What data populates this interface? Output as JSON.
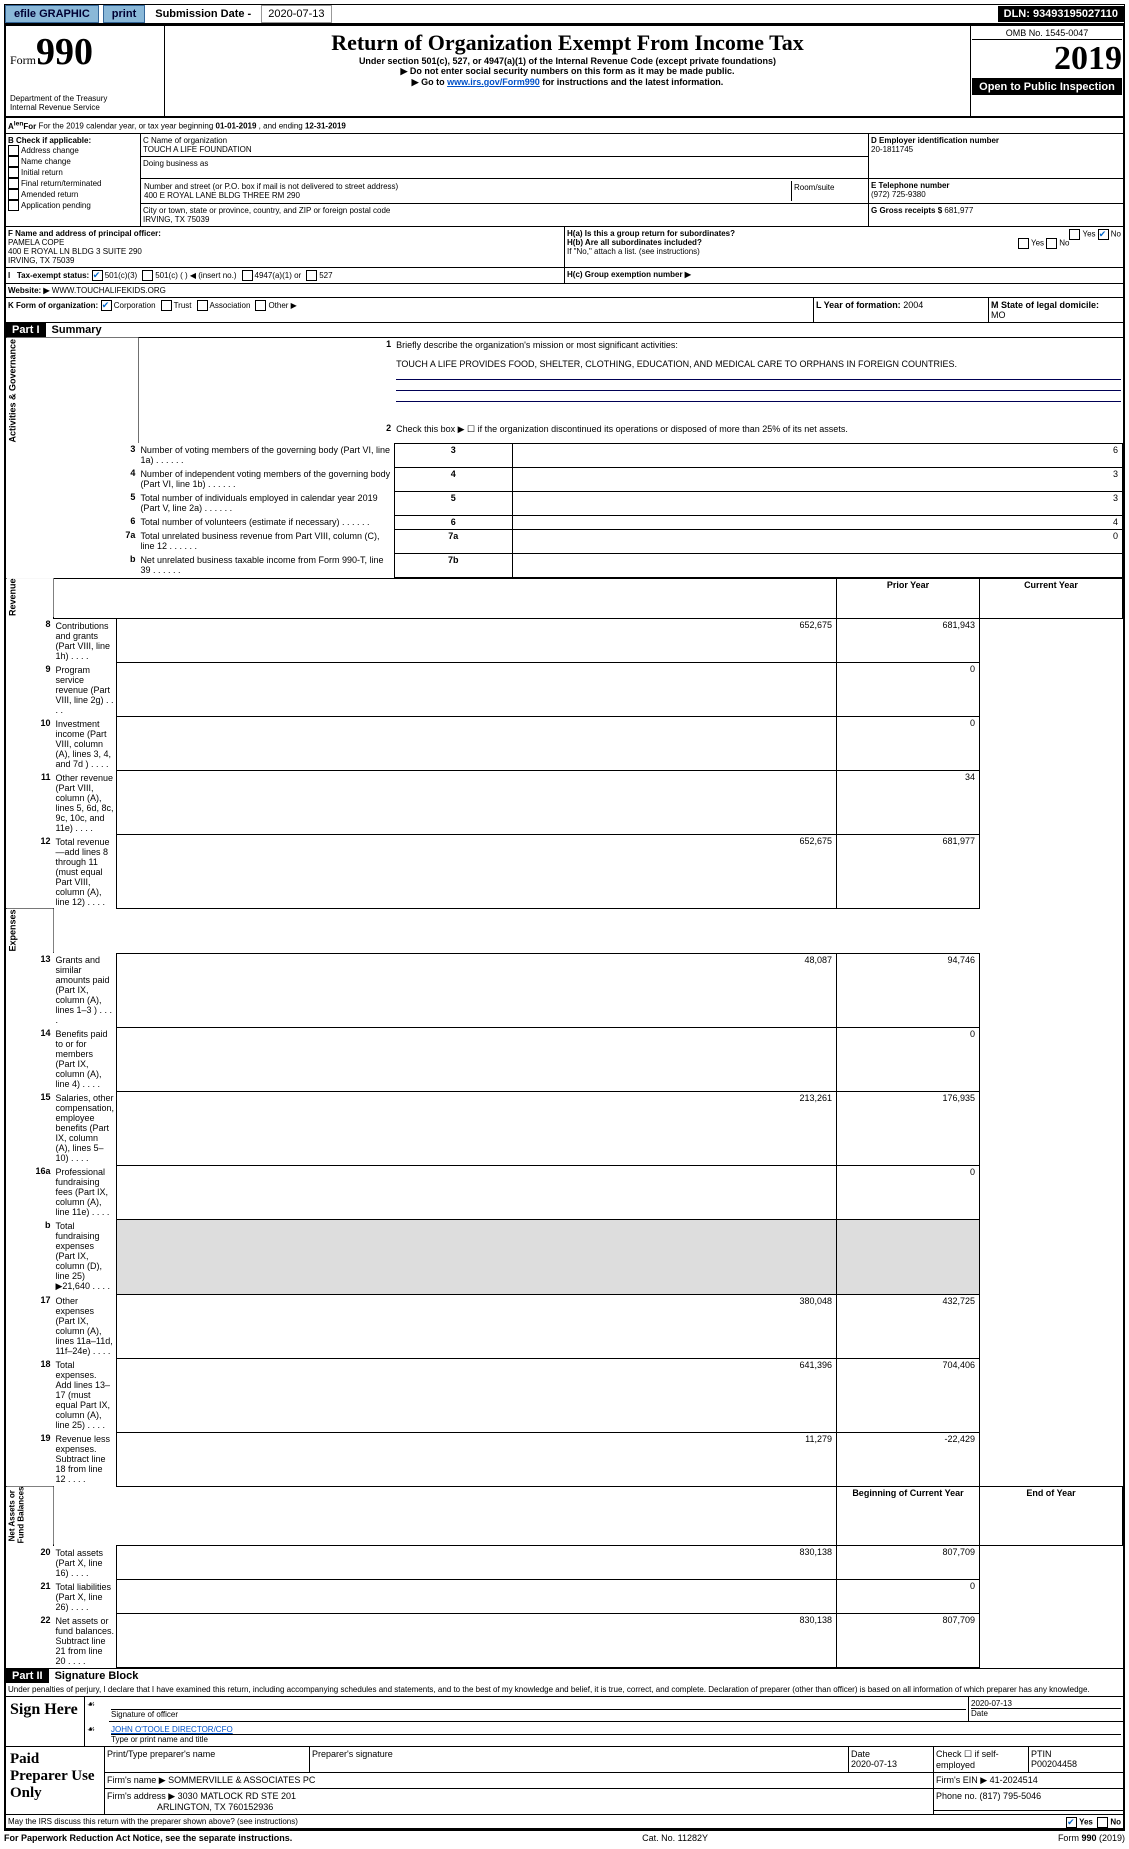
{
  "topbar": {
    "efile": "efile GRAPHIC",
    "print": "print",
    "subLabel": "Submission Date - ",
    "subDate": "2020-07-13",
    "dln": "DLN: 93493195027110"
  },
  "header": {
    "formWord": "Form",
    "formNum": "990",
    "dept": "Department of the Treasury\nInternal Revenue Service",
    "title": "Return of Organization Exempt From Income Tax",
    "sub": "Under section 501(c), 527, or 4947(a)(1) of the Internal Revenue Code (except private foundations)",
    "note1": "▶ Do not enter social security numbers on this form as it may be made public.",
    "note2a": "▶ Go to ",
    "note2link": "www.irs.gov/Form990",
    "note2b": " for instructions and the latest information.",
    "omb": "OMB No. 1545-0047",
    "year": "2019",
    "open": "Open to Public Inspection"
  },
  "A": {
    "text": "For the 2019 calendar year, or tax year beginning ",
    "beg": "01-01-2019",
    "mid": "  , and ending ",
    "end": "12-31-2019"
  },
  "B": {
    "label": "B Check if applicable:",
    "items": [
      "Address change",
      "Name change",
      "Initial return",
      "Final return/terminated",
      "Amended return",
      "Application pending"
    ]
  },
  "C": {
    "nameLbl": "C Name of organization",
    "name": "TOUCH A LIFE FOUNDATION",
    "dba": "Doing business as",
    "addrLbl": "Number and street (or P.O. box if mail is not delivered to street address)",
    "room": "Room/suite",
    "addr": "400 E ROYAL LANE BLDG THREE RM 290",
    "cityLbl": "City or town, state or province, country, and ZIP or foreign postal code",
    "city": "IRVING, TX  75039"
  },
  "D": {
    "lbl": "D Employer identification number",
    "val": "20-1811745"
  },
  "E": {
    "lbl": "E Telephone number",
    "val": "(972) 725-9380"
  },
  "G": {
    "lbl": "G Gross receipts $ ",
    "val": "681,977"
  },
  "F": {
    "lbl": "F  Name and address of principal officer:",
    "name": "PAMELA COPE",
    "addr": "400 E ROYAL LN BLDG 3 SUITE 290",
    "city": "IRVING, TX  75039"
  },
  "H": {
    "a": "H(a)  Is this a group return for subordinates?",
    "b": "H(b)  Are all subordinates included?",
    "bnote": "If \"No,\" attach a list. (see instructions)",
    "c": "H(c)  Group exemption number ▶"
  },
  "I": {
    "lbl": "Tax-exempt status:",
    "c3": "501(c)(3)",
    "c": "501(c) (   ) ◀ (insert no.)",
    "a1": "4947(a)(1) or",
    "s527": "527"
  },
  "J": {
    "lbl": "Website: ▶",
    "val": "  WWW.TOUCHALIFEKIDS.ORG"
  },
  "K": {
    "lbl": "K Form of organization:",
    "corp": "Corporation",
    "trust": "Trust",
    "assoc": "Association",
    "other": "Other ▶"
  },
  "L": {
    "lbl": "L Year of formation: ",
    "val": "2004"
  },
  "M": {
    "lbl": "M State of legal domicile: ",
    "val": "MO"
  },
  "part1": {
    "bar": "Part I",
    "title": "Summary"
  },
  "gov": {
    "side": "Activities & Governance",
    "l1": "Briefly describe the organization's mission or most significant activities:",
    "mission": "TOUCH A LIFE PROVIDES FOOD, SHELTER, CLOTHING, EDUCATION, AND MEDICAL CARE TO ORPHANS IN FOREIGN COUNTRIES.",
    "l2": "Check this box ▶ ☐  if the organization discontinued its operations or disposed of more than 25% of its net assets.",
    "rows": [
      {
        "n": "3",
        "t": "Number of voting members of the governing body (Part VI, line 1a)",
        "b": "3",
        "v": "6"
      },
      {
        "n": "4",
        "t": "Number of independent voting members of the governing body (Part VI, line 1b)",
        "b": "4",
        "v": "3"
      },
      {
        "n": "5",
        "t": "Total number of individuals employed in calendar year 2019 (Part V, line 2a)",
        "b": "5",
        "v": "3"
      },
      {
        "n": "6",
        "t": "Total number of volunteers (estimate if necessary)",
        "b": "6",
        "v": "4"
      },
      {
        "n": "7a",
        "t": "Total unrelated business revenue from Part VIII, column (C), line 12",
        "b": "7a",
        "v": "0"
      },
      {
        "n": "b",
        "t": "Net unrelated business taxable income from Form 990-T, line 39",
        "b": "7b",
        "v": ""
      }
    ]
  },
  "fin": {
    "hdrPrior": "Prior Year",
    "hdrCurr": "Current Year",
    "rev": {
      "side": "Revenue",
      "rows": [
        {
          "n": "8",
          "t": "Contributions and grants (Part VIII, line 1h)",
          "p": "652,675",
          "c": "681,943"
        },
        {
          "n": "9",
          "t": "Program service revenue (Part VIII, line 2g)",
          "p": "",
          "c": "0"
        },
        {
          "n": "10",
          "t": "Investment income (Part VIII, column (A), lines 3, 4, and 7d )",
          "p": "",
          "c": "0"
        },
        {
          "n": "11",
          "t": "Other revenue (Part VIII, column (A), lines 5, 6d, 8c, 9c, 10c, and 11e)",
          "p": "",
          "c": "34"
        },
        {
          "n": "12",
          "t": "Total revenue—add lines 8 through 11 (must equal Part VIII, column (A), line 12)",
          "p": "652,675",
          "c": "681,977"
        }
      ]
    },
    "exp": {
      "side": "Expenses",
      "rows": [
        {
          "n": "13",
          "t": "Grants and similar amounts paid (Part IX, column (A), lines 1–3 )",
          "p": "48,087",
          "c": "94,746"
        },
        {
          "n": "14",
          "t": "Benefits paid to or for members (Part IX, column (A), line 4)",
          "p": "",
          "c": "0"
        },
        {
          "n": "15",
          "t": "Salaries, other compensation, employee benefits (Part IX, column (A), lines 5–10)",
          "p": "213,261",
          "c": "176,935"
        },
        {
          "n": "16a",
          "t": "Professional fundraising fees (Part IX, column (A), line 11e)",
          "p": "",
          "c": "0"
        },
        {
          "n": "b",
          "t": "Total fundraising expenses (Part IX, column (D), line 25) ▶21,640",
          "p": "__gray__",
          "c": "__gray__"
        },
        {
          "n": "17",
          "t": "Other expenses (Part IX, column (A), lines 11a–11d, 11f–24e)",
          "p": "380,048",
          "c": "432,725"
        },
        {
          "n": "18",
          "t": "Total expenses. Add lines 13–17 (must equal Part IX, column (A), line 25)",
          "p": "641,396",
          "c": "704,406"
        },
        {
          "n": "19",
          "t": "Revenue less expenses. Subtract line 18 from line 12",
          "p": "11,279",
          "c": "-22,429"
        }
      ]
    },
    "na": {
      "side": "Net Assets or\nFund Balances",
      "hdrB": "Beginning of Current Year",
      "hdrE": "End of Year",
      "rows": [
        {
          "n": "20",
          "t": "Total assets (Part X, line 16)",
          "p": "830,138",
          "c": "807,709"
        },
        {
          "n": "21",
          "t": "Total liabilities (Part X, line 26)",
          "p": "",
          "c": "0"
        },
        {
          "n": "22",
          "t": "Net assets or fund balances. Subtract line 21 from line 20",
          "p": "830,138",
          "c": "807,709"
        }
      ]
    }
  },
  "part2": {
    "bar": "Part II",
    "title": "Signature Block",
    "decl": "Under penalties of perjury, I declare that I have examined this return, including accompanying schedules and statements, and to the best of my knowledge and belief, it is true, correct, and complete. Declaration of preparer (other than officer) is based on all information of which preparer has any knowledge."
  },
  "sign": {
    "here": "Sign Here",
    "sigLbl": "Signature of officer",
    "date": "2020-07-13",
    "dateLbl": "Date",
    "name": "JOHN O'TOOLE  DIRECTOR/CFO",
    "nameLbl": "Type or print name and title"
  },
  "paid": {
    "title": "Paid Preparer Use Only",
    "h1": "Print/Type preparer's name",
    "h2": "Preparer's signature",
    "h3": "Date",
    "h4": "Check ☐  if self-employed",
    "h5": "PTIN",
    "date": "2020-07-13",
    "ptin": "P00204458",
    "firmLbl": "Firm's name    ▶",
    "firm": "SOMMERVILLE & ASSOCIATES PC",
    "einLbl": "Firm's EIN ▶",
    "ein": "41-2024514",
    "addrLbl": "Firm's address ▶",
    "addr": "3030 MATLOCK RD STE 201",
    "city": "ARLINGTON, TX  760152936",
    "phLbl": "Phone no. ",
    "ph": "(817) 795-5046"
  },
  "discuss": {
    "q": "May the IRS discuss this return with the preparer shown above? (see instructions)",
    "yes": "Yes",
    "no": "No"
  },
  "footer": {
    "l": "For Paperwork Reduction Act Notice, see the separate instructions.",
    "c": "Cat. No. 11282Y",
    "r": "Form 990 (2019)"
  }
}
